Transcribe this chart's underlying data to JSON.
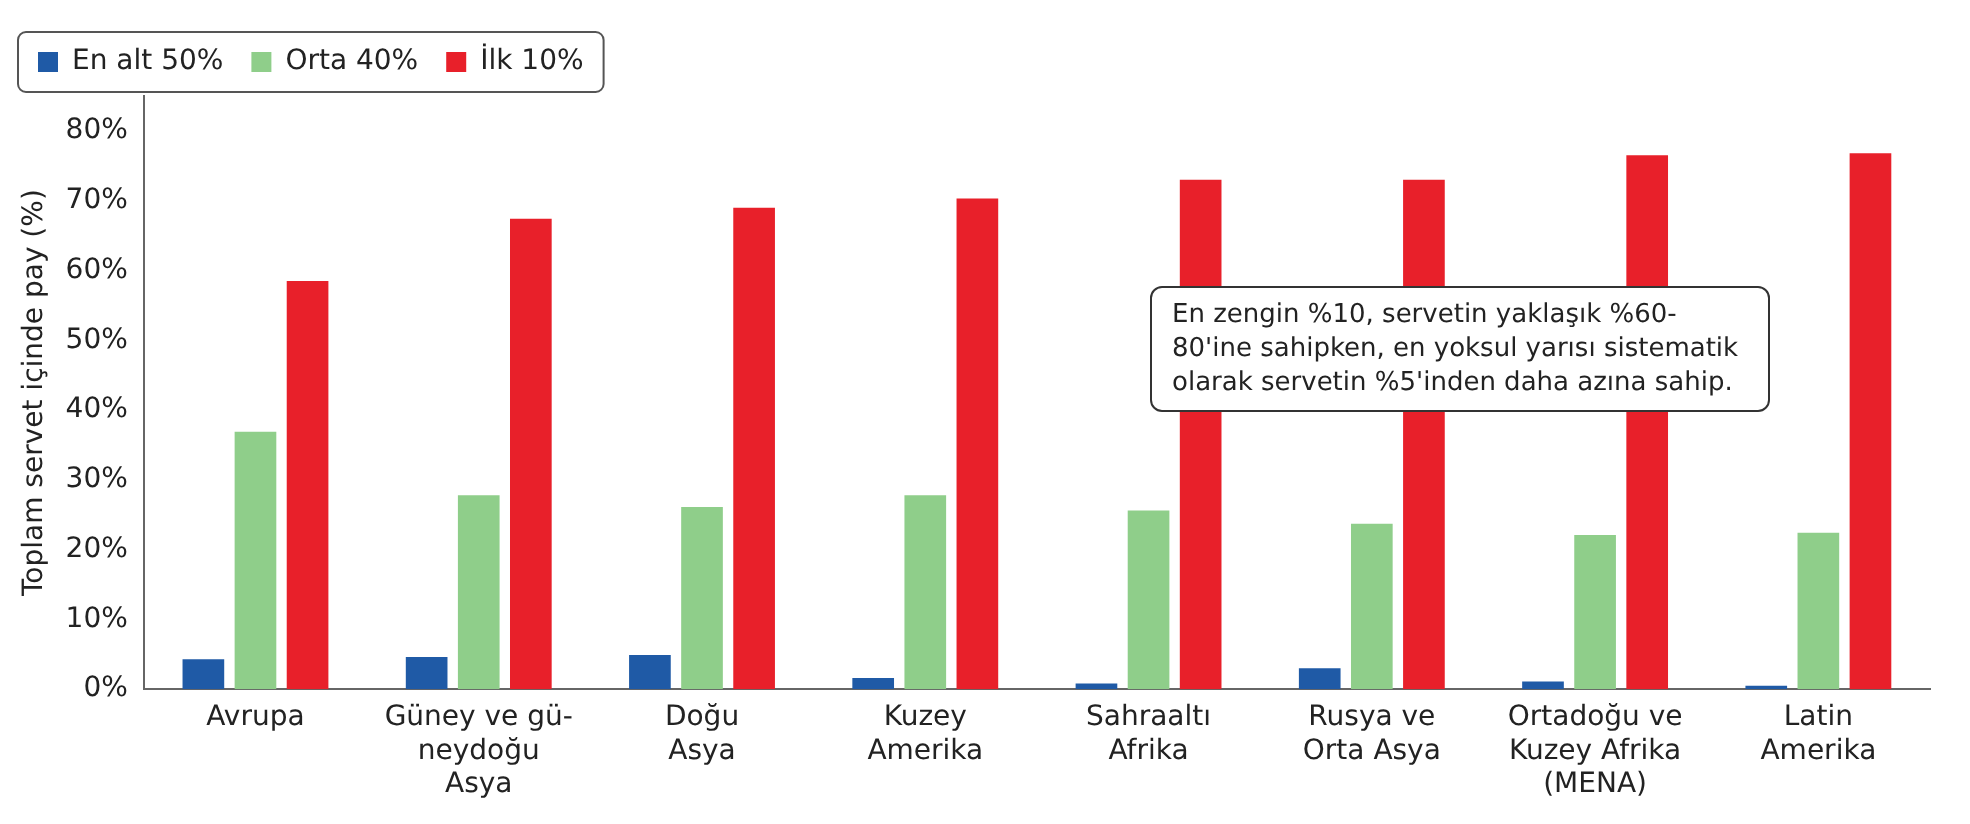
{
  "chart_data": {
    "type": "bar",
    "ylabel": "Toplam servet içinde pay (%)",
    "categories": [
      "Avrupa",
      "Güney ve gü-\nneydoğu\nAsya",
      "Doğu\nAsya",
      "Kuzey\nAmerika",
      "Sahraaltı\nAfrika",
      "Rusya ve\nOrta Asya",
      "Ortadoğu ve\nKuzey Afrika\n(MENA)",
      "Latin\nAmerika"
    ],
    "series": [
      {
        "name": "En alt 50%",
        "color": "#1f5aa6",
        "values": [
          4.3,
          4.6,
          4.9,
          1.6,
          0.8,
          3.0,
          1.1,
          0.5
        ]
      },
      {
        "name": "Orta 40%",
        "color": "#8fce8a",
        "values": [
          36.9,
          27.8,
          26.1,
          27.8,
          25.6,
          23.7,
          22.1,
          22.4
        ]
      },
      {
        "name": "İlk 10%",
        "color": "#e8202a",
        "values": [
          58.5,
          67.4,
          69,
          70.3,
          73,
          73,
          76.5,
          76.8
        ]
      }
    ],
    "ylim": [
      0,
      85
    ],
    "yticks": [
      {
        "value": 0,
        "label": "0%"
      },
      {
        "value": 10,
        "label": "10%"
      },
      {
        "value": 20,
        "label": "20%"
      },
      {
        "value": 30,
        "label": "30%"
      },
      {
        "value": 40,
        "label": "40%"
      },
      {
        "value": 50,
        "label": "50%"
      },
      {
        "value": 60,
        "label": "60%"
      },
      {
        "value": 70,
        "label": "70%"
      },
      {
        "value": 80,
        "label": "80%"
      }
    ],
    "grid": false,
    "legend": "top left",
    "annotations": [
      "En zengin %10, servetin yaklaşık %60-80'ine sahipken, en yoksul yarısı sistematik olarak servetin %5'inden daha azına sahip."
    ]
  }
}
